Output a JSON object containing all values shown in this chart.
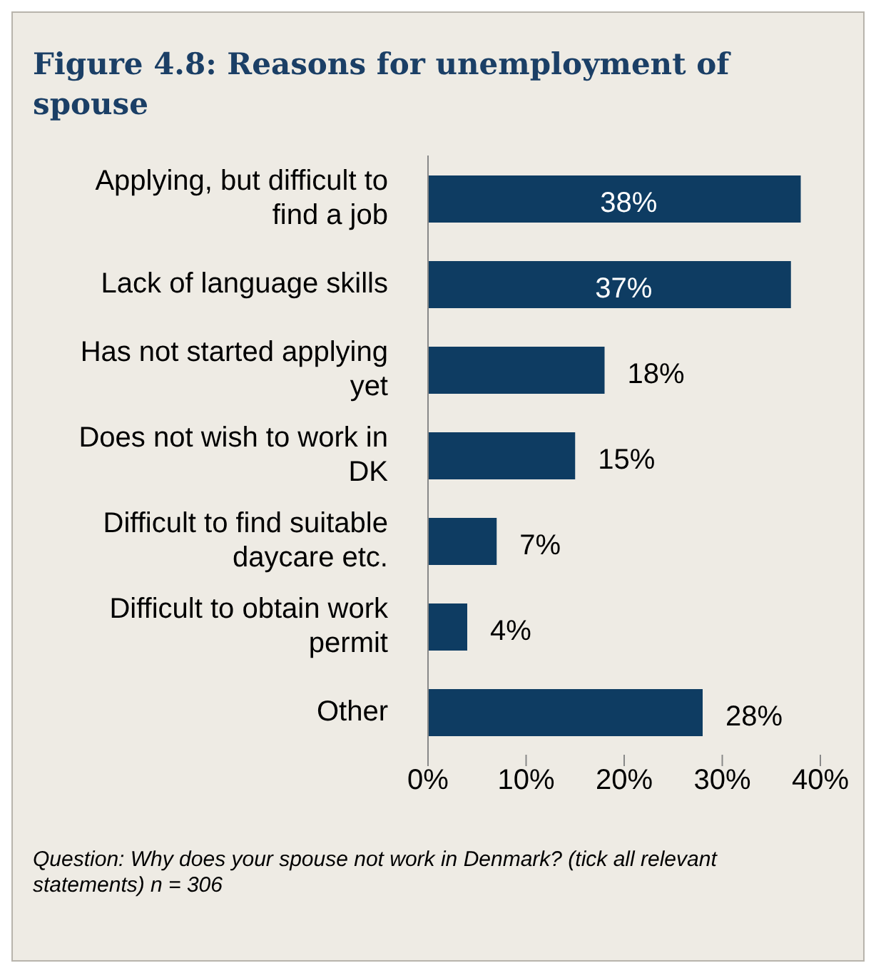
{
  "chart_data": {
    "type": "bar",
    "orientation": "horizontal",
    "title": "Figure 4.8: Reasons for unemployment of spouse",
    "categories": [
      "Applying, but difficult to find a job",
      "Lack of language skills",
      "Has not started applying yet",
      "Does not wish to work in DK",
      "Difficult to find suitable daycare etc.",
      "Difficult to obtain work permit",
      "Other"
    ],
    "values": [
      38,
      37,
      18,
      15,
      7,
      4,
      28
    ],
    "value_labels": [
      "38%",
      "37%",
      "18%",
      "15%",
      "7%",
      "4%",
      "28%"
    ],
    "color": "#0e3c62",
    "xlim": [
      0,
      40
    ],
    "xticks": [
      {
        "value": 0,
        "label": "0%"
      },
      {
        "value": 10,
        "label": "10%"
      },
      {
        "value": 20,
        "label": "20%"
      },
      {
        "value": 30,
        "label": "30%"
      },
      {
        "value": 40,
        "label": "40%"
      }
    ],
    "annotations": [
      "Question: Why does your spouse not work in Denmark? (tick all relevant statements) n = 306"
    ]
  }
}
